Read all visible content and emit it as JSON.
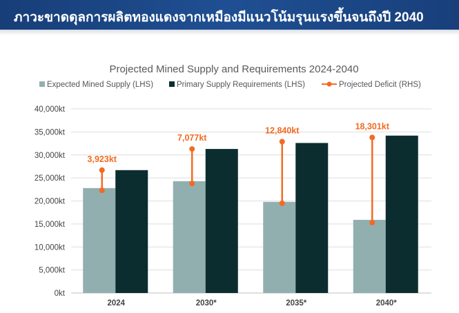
{
  "banner": {
    "title": "ภาวะขาดดุลการผลิตทองแดงจากเหมืองมีแนวโน้มรุนแรงขึ้นจนถึงปี 2040"
  },
  "colors": {
    "mined": "#92afb0",
    "requirements": "#0c2d2f",
    "deficit": "#f26b22",
    "axis_text": "#444444",
    "grid": "#dddddd",
    "title": "#595959"
  },
  "chart_data": {
    "type": "bar",
    "title": "Projected Mined Supply and Requirements 2024-2040",
    "categories": [
      "2024",
      "2030*",
      "2035*",
      "2040*"
    ],
    "series": [
      {
        "name": "Expected Mined Supply (LHS)",
        "values": [
          22800,
          24300,
          19800,
          15900
        ]
      },
      {
        "name": "Primary Supply Requirements (LHS)",
        "values": [
          26700,
          31300,
          32600,
          34200
        ]
      }
    ],
    "deficit": {
      "name": "Projected Deficit (RHS)",
      "values": [
        3923,
        7077,
        12840,
        18301
      ],
      "labels": [
        "3,923kt",
        "7,077kt",
        "12,840kt",
        "18,301kt"
      ],
      "markers": [
        {
          "top": 26700,
          "bottom": 22300
        },
        {
          "top": 31300,
          "bottom": 23800
        },
        {
          "top": 32900,
          "bottom": 19500
        },
        {
          "top": 33800,
          "bottom": 15300
        }
      ]
    },
    "ylim": [
      0,
      40000
    ],
    "yticks": [
      0,
      5000,
      10000,
      15000,
      20000,
      25000,
      30000,
      35000,
      40000
    ],
    "ytick_labels": [
      "0kt",
      "5,000kt",
      "10,000kt",
      "15,000kt",
      "20,000kt",
      "25,000kt",
      "30,000kt",
      "35,000kt",
      "40,000kt"
    ],
    "grid": true,
    "legend": "top"
  }
}
